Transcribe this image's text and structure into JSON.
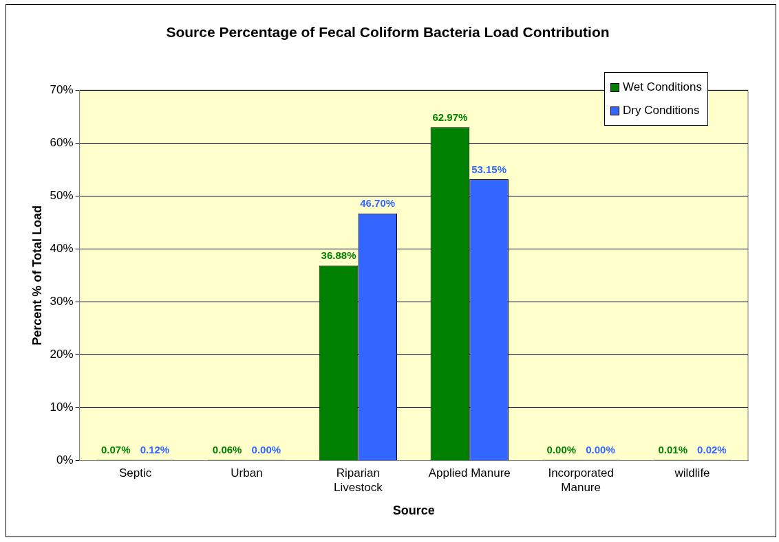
{
  "chart_data": {
    "type": "bar",
    "title": "Source Percentage of Fecal Coliform Bacteria Load Contribution",
    "xlabel": "Source",
    "ylabel": "Percent % of Total Load",
    "categories": [
      "Septic",
      "Urban",
      "Riparian Livestock",
      "Applied Manure",
      "Incorporated Manure",
      "wildlife"
    ],
    "series": [
      {
        "name": "Wet Conditions",
        "color": "#008000",
        "values": [
          0.07,
          0.06,
          36.88,
          62.97,
          0.0,
          0.01
        ],
        "value_labels": [
          "0.07%",
          "0.06%",
          "36.88%",
          "62.97%",
          "0.00%",
          "0.01%"
        ]
      },
      {
        "name": "Dry Conditions",
        "color": "#3366ff",
        "values": [
          0.12,
          0.0,
          46.7,
          53.15,
          0.0,
          0.02
        ],
        "value_labels": [
          "0.12%",
          "0.00%",
          "46.70%",
          "53.15%",
          "0.00%",
          "0.02%"
        ]
      }
    ],
    "ylim": [
      0,
      70
    ],
    "yticks": [
      {
        "value": 0,
        "label": "0%"
      },
      {
        "value": 10,
        "label": "10%"
      },
      {
        "value": 20,
        "label": "20%"
      },
      {
        "value": 30,
        "label": "30%"
      },
      {
        "value": 40,
        "label": "40%"
      },
      {
        "value": 50,
        "label": "50%"
      },
      {
        "value": 60,
        "label": "60%"
      },
      {
        "value": 70,
        "label": "70%"
      }
    ],
    "grid": "y",
    "legend": "top right"
  }
}
